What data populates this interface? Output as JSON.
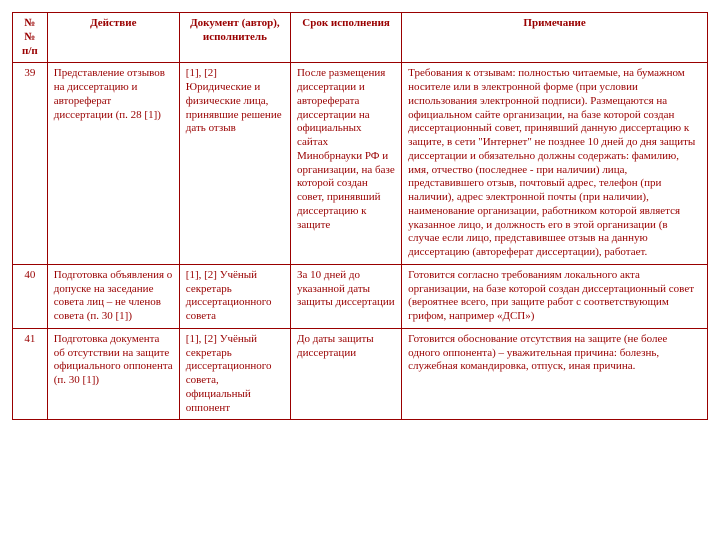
{
  "headers": {
    "num": "№№ п/п",
    "action": "Действие",
    "doc": "Документ (автор), исполнитель",
    "srok": "Срок исполнения",
    "prim": "Примечание"
  },
  "rows": [
    {
      "num": "39",
      "action": "Представление отзывов на диссертацию и автореферат диссертации (п. 28 [1])",
      "doc": "[1], [2] Юридические и физические лица, принявшие решение дать отзыв",
      "srok": "После размещения диссертации и автореферата диссертации на официальных сайтах Минобрнауки РФ и организации, на базе которой создан совет, принявший диссертацию к защите",
      "prim": "Требования к отзывам: полностью читаемые, на бумажном носителе или в электронной форме (при условии использования электронной подписи). Размещаются на официальном сайте организации, на базе которой создан диссертационный совет, принявший данную диссертацию к защите, в сети \"Интернет\" не позднее 10 дней до дня защиты диссертации и обязательно должны содержать: фамилию, имя, отчество (последнее - при наличии) лица, представившего отзыв, почтовый адрес, телефон (при наличии), адрес электронной почты (при наличии), наименование организации, работником которой является указанное лицо, и должность его в этой организации (в случае если лицо, представившее отзыв на данную диссертацию (автореферат диссертации), работает."
    },
    {
      "num": "40",
      "action": "Подготовка объявления о допуске на заседание совета лиц – не членов совета (п. 30 [1])",
      "doc": "[1], [2] Учёный секретарь диссертационного совета",
      "srok": "За 10 дней до указанной даты защиты диссертации",
      "prim": "Готовится согласно требованиям локального акта организации, на базе которой создан диссертационный совет (вероятнее всего, при защите работ с соответствующим грифом, например «ДСП»)"
    },
    {
      "num": "41",
      "action": "Подготовка документа об отсутствии на защите официального оппонента (п. 30 [1])",
      "doc": "[1], [2] Учёный секретарь диссертационного совета, официальный оппонент",
      "srok": "До даты защиты диссертации",
      "prim": "Готовится обоснование отсутствия на защите (не более одного оппонента) – уважительная причина: болезнь, служебная командировка, отпуск, иная причина."
    }
  ]
}
